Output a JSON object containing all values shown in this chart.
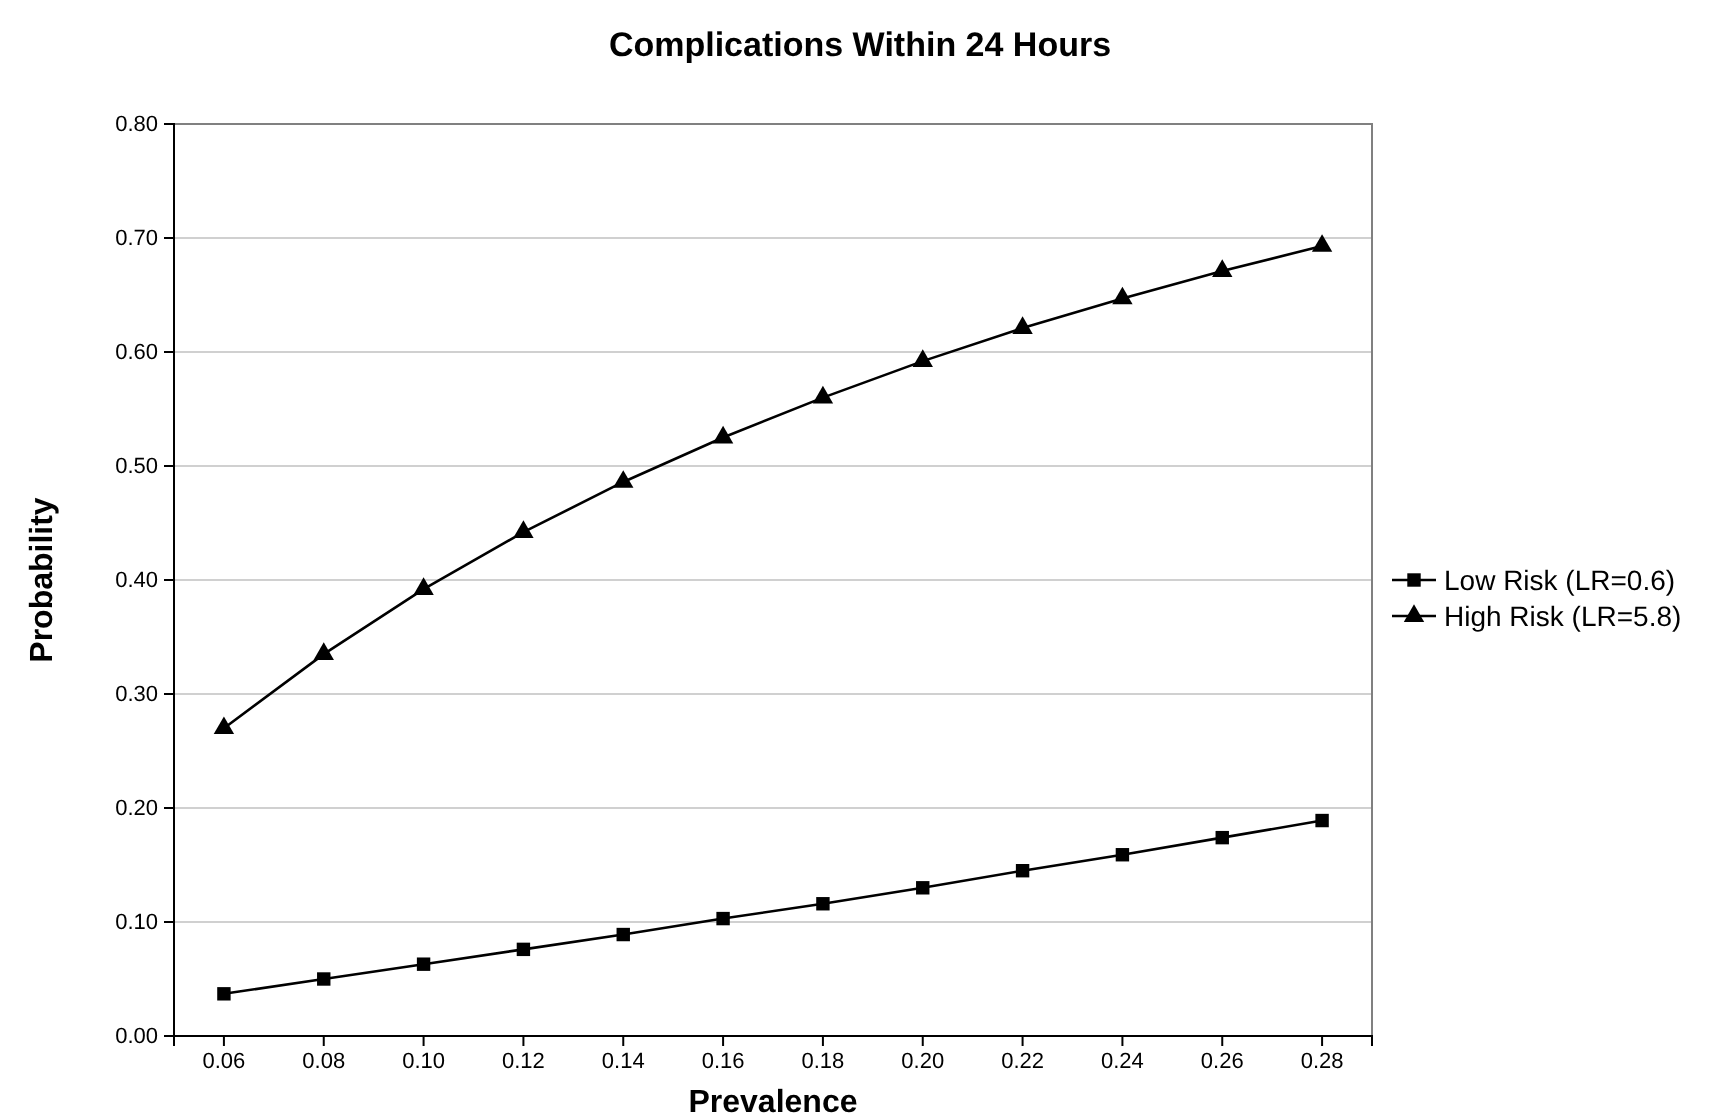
{
  "chart_data": {
    "type": "line",
    "title": "Complications Within 24 Hours",
    "xlabel": "Prevalence",
    "ylabel": "Probability",
    "categories": [
      "0.06",
      "0.08",
      "0.10",
      "0.12",
      "0.14",
      "0.16",
      "0.18",
      "0.20",
      "0.22",
      "0.24",
      "0.26",
      "0.28"
    ],
    "series": [
      {
        "name": "Low Risk (LR=0.6)",
        "color": "#000000",
        "marker": "square",
        "values": [
          0.037,
          0.05,
          0.063,
          0.076,
          0.089,
          0.103,
          0.116,
          0.13,
          0.145,
          0.159,
          0.174,
          0.189
        ]
      },
      {
        "name": "High Risk (LR=5.8)",
        "color": "#000000",
        "marker": "triangle",
        "values": [
          0.27,
          0.335,
          0.392,
          0.442,
          0.486,
          0.525,
          0.56,
          0.592,
          0.621,
          0.647,
          0.671,
          0.693
        ]
      }
    ],
    "ylim": [
      0,
      0.8
    ],
    "yticks": [
      {
        "value": 0,
        "label": "0.00"
      },
      {
        "value": 0.1,
        "label": "0.10"
      },
      {
        "value": 0.2,
        "label": "0.20"
      },
      {
        "value": 0.3,
        "label": "0.30"
      },
      {
        "value": 0.4,
        "label": "0.40"
      },
      {
        "value": 0.5,
        "label": "0.50"
      },
      {
        "value": 0.6,
        "label": "0.60"
      },
      {
        "value": 0.7,
        "label": "0.70"
      },
      {
        "value": 0.8,
        "label": "0.80"
      }
    ],
    "grid": "y",
    "legend": "right",
    "line_style": "solid"
  }
}
